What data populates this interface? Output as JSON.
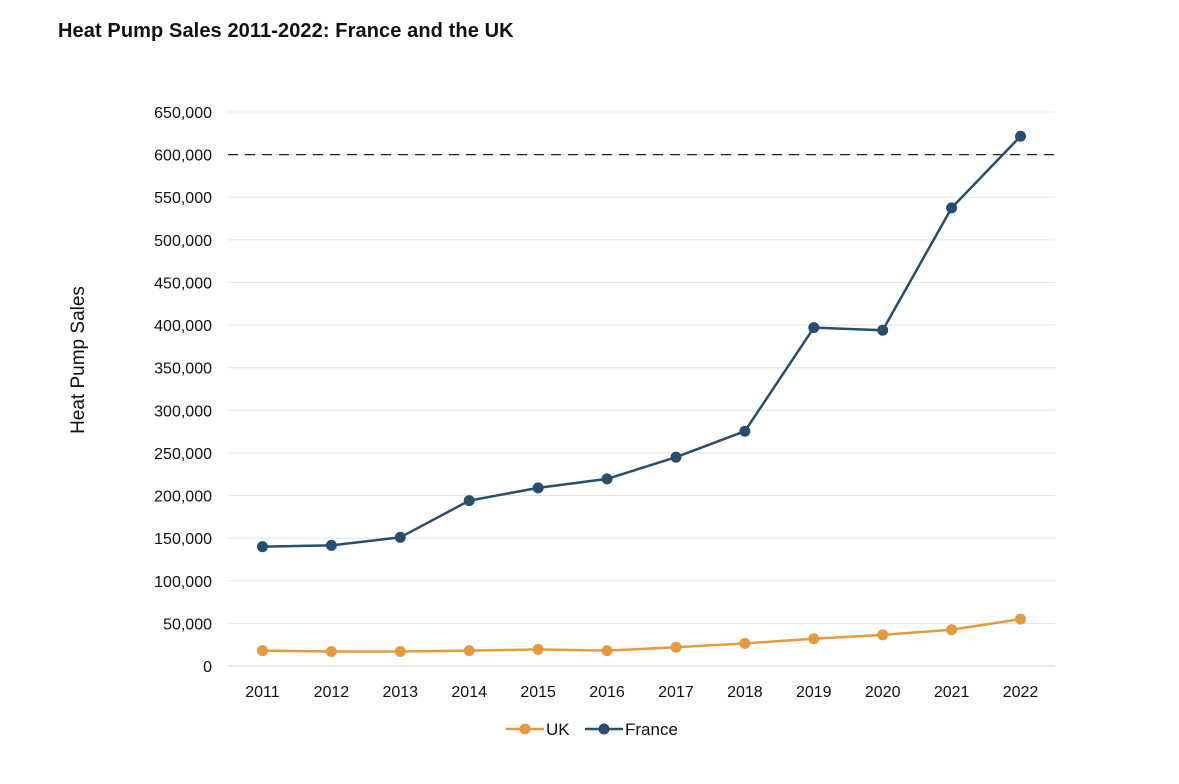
{
  "chart_data": {
    "type": "line",
    "title": "Heat Pump Sales 2011-2022: France and the UK",
    "ylabel": "Heat Pump Sales",
    "xlabel": "",
    "x": [
      "2011",
      "2012",
      "2013",
      "2014",
      "2015",
      "2016",
      "2017",
      "2018",
      "2019",
      "2020",
      "2021",
      "2022"
    ],
    "ylim": [
      0,
      650000
    ],
    "yticks": [
      0,
      50000,
      100000,
      150000,
      200000,
      250000,
      300000,
      350000,
      400000,
      450000,
      500000,
      550000,
      600000,
      650000
    ],
    "ytick_labels": [
      "0",
      "50,000",
      "100,000",
      "150,000",
      "200,000",
      "250,000",
      "300,000",
      "350,000",
      "400,000",
      "450,000",
      "500,000",
      "550,000",
      "600,000",
      "650,000"
    ],
    "grid": true,
    "reference_line": {
      "value": 600000,
      "style": "dashed"
    },
    "legend_position": "bottom-center",
    "series": [
      {
        "name": "UK",
        "color": "#E59A3D",
        "values": [
          18000,
          17000,
          17000,
          18000,
          19500,
          18000,
          22000,
          26500,
          32000,
          36500,
          42500,
          55000
        ]
      },
      {
        "name": "France",
        "color": "#284E6E",
        "values": [
          140000,
          141500,
          151000,
          194000,
          209000,
          219500,
          245000,
          275500,
          397000,
          394000,
          537500,
          621500
        ]
      }
    ]
  }
}
